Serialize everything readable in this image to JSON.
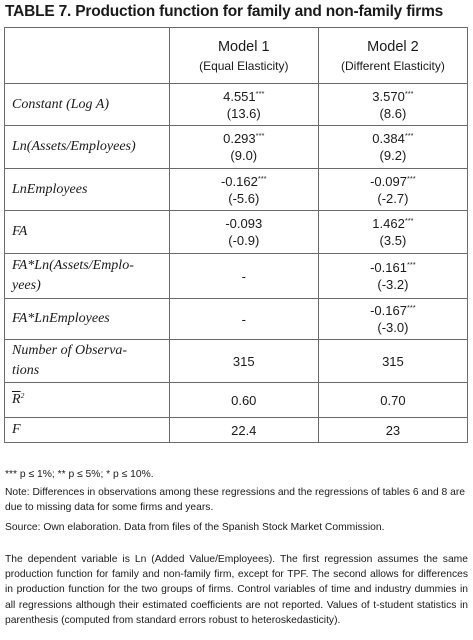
{
  "title": {
    "prefix": "TABLE 7.",
    "text": "Production function for family and non-family firms"
  },
  "header": {
    "model1": "Model 1",
    "model1_sub": "(Equal Elasticity)",
    "model2": "Model 2",
    "model2_sub": "(Different Elasticity)"
  },
  "rows": {
    "constant": {
      "label": "Constant (Log A)",
      "m1": "4.551",
      "m1_sig": "***",
      "m1_t": "(13.6)",
      "m2": "3.570",
      "m2_sig": "***",
      "m2_t": "(8.6)"
    },
    "ln_assets": {
      "label": "Ln(Assets/Employees)",
      "m1": "0.293",
      "m1_sig": "***",
      "m1_t": "(9.0)",
      "m2": "0.384",
      "m2_sig": "***",
      "m2_t": "(9.2)"
    },
    "ln_employees": {
      "label": "LnEmployees",
      "m1": "-0.162",
      "m1_sig": "***",
      "m1_t": "(-5.6)",
      "m2": "-0.097",
      "m2_sig": "***",
      "m2_t": "(-2.7)"
    },
    "fa": {
      "label": "FA",
      "m1": "-0.093",
      "m1_sig": "",
      "m1_t": "(-0.9)",
      "m2": "1.462",
      "m2_sig": "***",
      "m2_t": "(3.5)"
    },
    "fa_ln_assets": {
      "label_line1": "FA*Ln(Assets/Emplo-",
      "label_line2": "yees)",
      "m1": "-",
      "m2": "-0.161",
      "m2_sig": "***",
      "m2_t": "(-3.2)"
    },
    "fa_ln_employees": {
      "label": "FA*LnEmployees",
      "m1": "-",
      "m2": "-0.167",
      "m2_sig": "***",
      "m2_t": "(-3.0)"
    },
    "n_obs": {
      "label_line1": "Number of Observa-",
      "label_line2": "tions",
      "m1": "315",
      "m2": "315"
    },
    "r2": {
      "label": "R",
      "label_sup": "2",
      "m1": "0.60",
      "m2": "0.70"
    },
    "f": {
      "label": "F",
      "m1": "22.4",
      "m2": "23"
    }
  },
  "notes": {
    "significance": "*** p ≤ 1%; ** p ≤ 5%; * p ≤ 10%.",
    "note": "Note: Differences in observations among these regressions and the regressions of tables 6 and 8 are due to missing data for some firms and years.",
    "source": "Source: Own elaboration. Data from files of the Spanish Stock Market Commission."
  },
  "paragraph": "The dependent variable is Ln (Added Value/Employees). The first regression assumes the same production function for family and non-family firm, except for TPF. The second allows for differences in production function for the two groups of firms. Control variables of time and industry dummies in all regressions although their estimated coefficients are not reported. Values of t-student statistics in parenthesis (computed from standard errors robust to heteroskedasticity)."
}
